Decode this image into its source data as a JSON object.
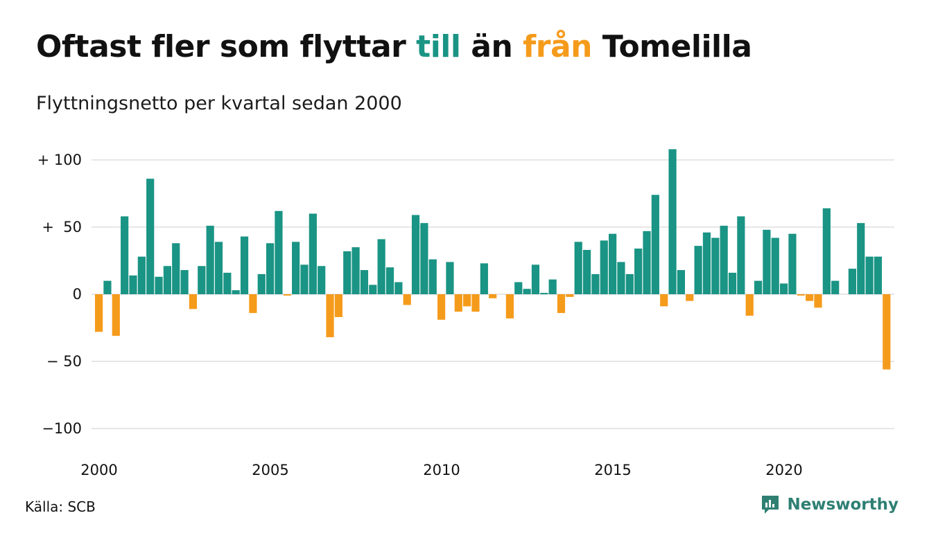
{
  "title": {
    "before": "Oftast fler som flyttar ",
    "till": "till",
    "middle": " än ",
    "fran": "från",
    "after": " Tomelilla"
  },
  "subtitle": "Flyttningsnetto per kvartal sedan 2000",
  "source": "Källa: SCB",
  "logo": {
    "text": "Newsworthy",
    "icon": "newsworthy-logo-icon"
  },
  "colors": {
    "positive": "#1a9484",
    "negative": "#f59b1b",
    "grid": "#dddddd",
    "till": "#1a9484",
    "fran": "#f59b1b"
  },
  "chart_data": {
    "type": "bar",
    "title": "Oftast fler som flyttar till än från Tomelilla",
    "subtitle": "Flyttningsnetto per kvartal sedan 2000",
    "xlabel": "",
    "ylabel": "",
    "x_start": 2000,
    "periods_per_year": 4,
    "ylim": [
      -100,
      100
    ],
    "y_ticks": [
      100,
      50,
      0,
      -50,
      -100
    ],
    "y_tick_labels": [
      "+ 100",
      "+  50",
      "0",
      "− 50",
      "−100"
    ],
    "x_ticks": [
      2000,
      2005,
      2010,
      2015,
      2020
    ],
    "x_tick_labels": [
      "2000",
      "2005",
      "2010",
      "2015",
      "2020"
    ],
    "grid": true,
    "values": [
      -28,
      10,
      -31,
      58,
      14,
      28,
      86,
      13,
      21,
      38,
      18,
      -11,
      21,
      51,
      39,
      16,
      3,
      43,
      -14,
      15,
      38,
      62,
      -1,
      39,
      22,
      60,
      21,
      -32,
      -17,
      32,
      35,
      18,
      7,
      41,
      20,
      9,
      -8,
      59,
      53,
      26,
      -19,
      24,
      -13,
      -9,
      -13,
      23,
      -3,
      0,
      -18,
      9,
      4,
      22,
      1,
      11,
      -14,
      -2,
      39,
      33,
      15,
      40,
      45,
      24,
      15,
      34,
      47,
      74,
      -9,
      108,
      18,
      -5,
      36,
      46,
      42,
      51,
      16,
      58,
      -16,
      10,
      48,
      42,
      8,
      45,
      -1,
      -5,
      -10,
      64,
      10,
      0,
      19,
      53,
      28,
      28,
      -56
    ]
  }
}
